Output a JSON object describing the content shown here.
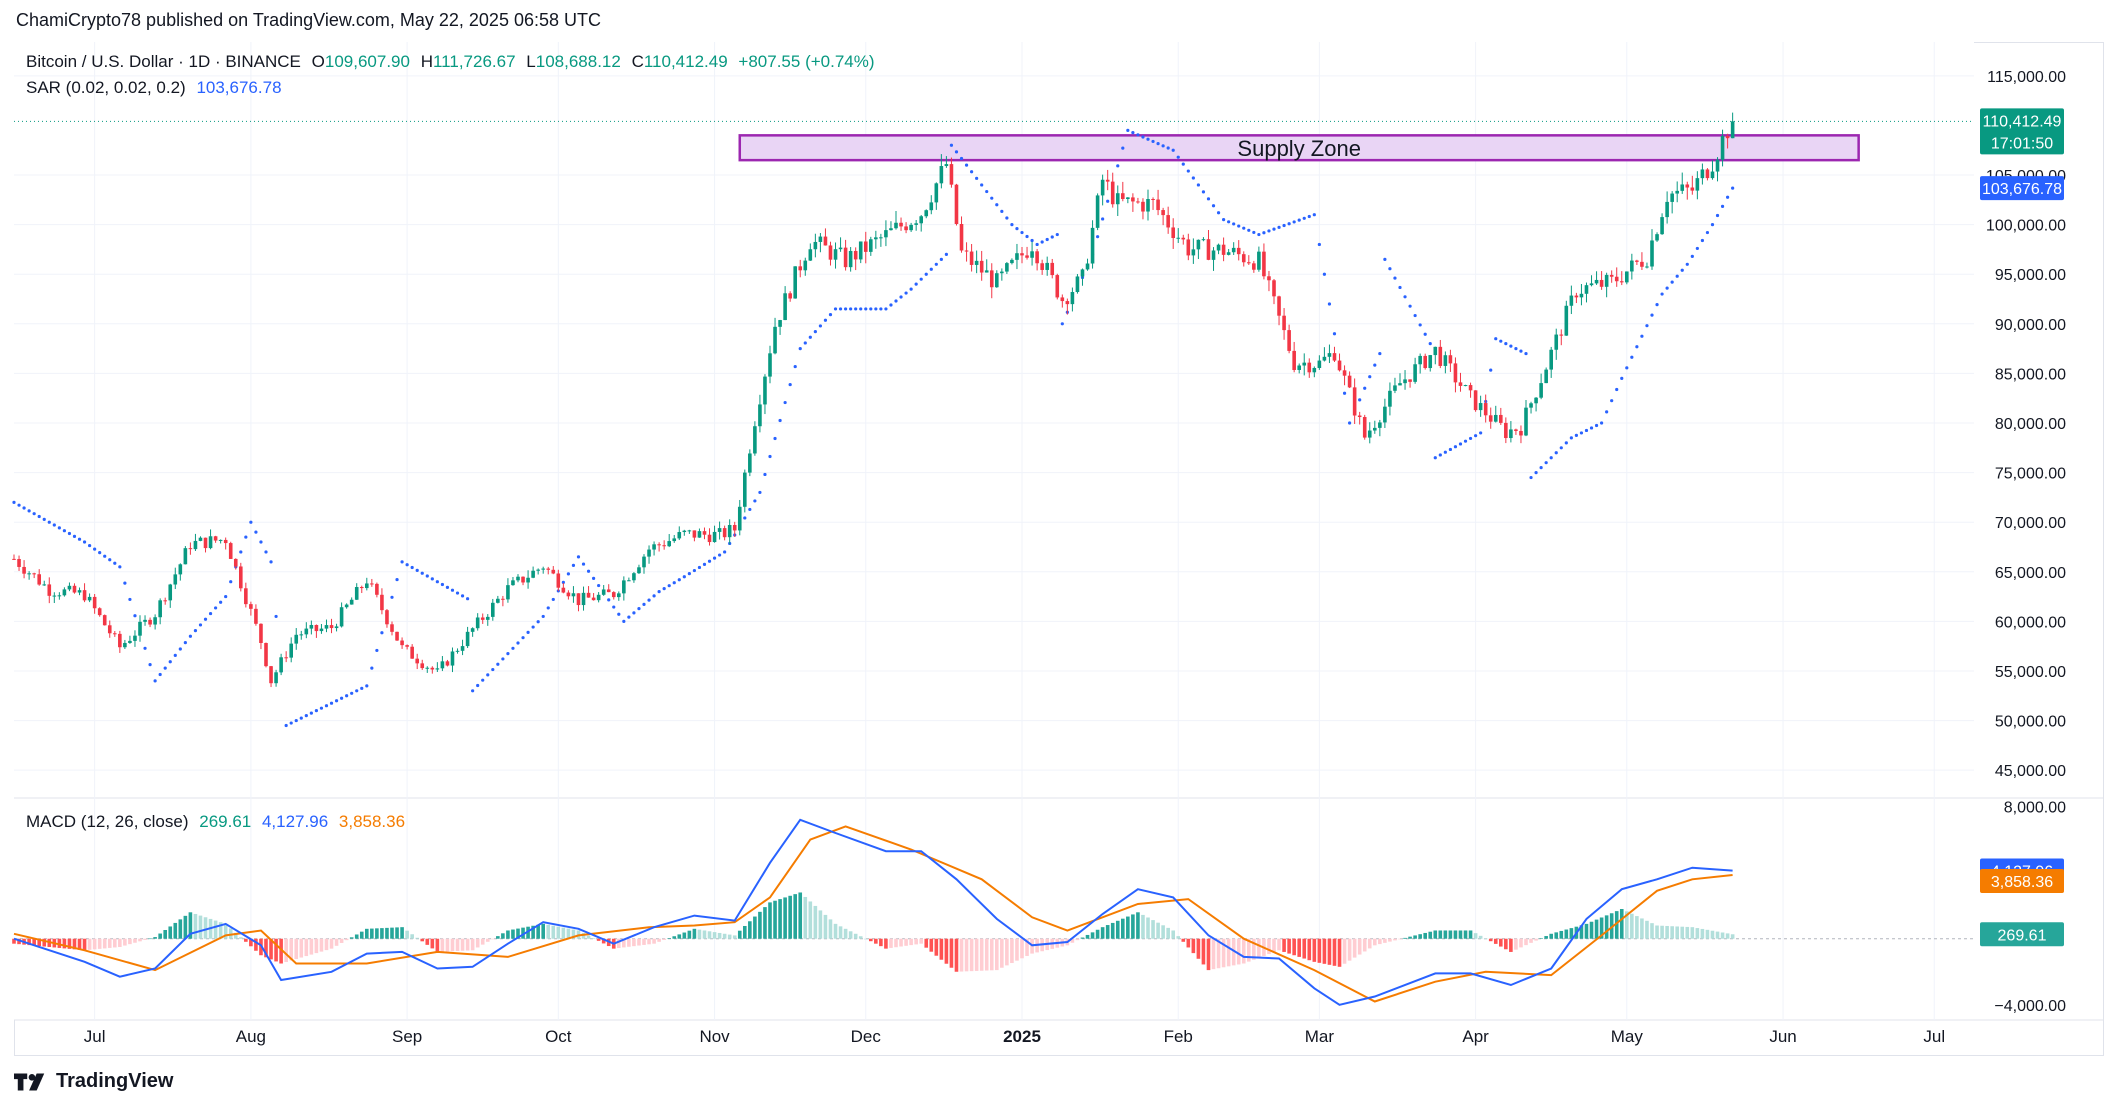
{
  "header": {
    "publisher_text": "ChamiCrypto78 published on TradingView.com, May 22, 2025 06:58 UTC"
  },
  "legend": {
    "symbol": "Bitcoin / U.S. Dollar · 1D · BINANCE",
    "o_label": "O",
    "o": "109,607.90",
    "h_label": "H",
    "h": "111,726.67",
    "l_label": "L",
    "l": "108,688.12",
    "c_label": "C",
    "c": "110,412.49",
    "change": "+807.55 (+0.74%)",
    "sar_label": "SAR (0.02, 0.02, 0.2)",
    "sar_value": "103,676.78",
    "macd_label": "MACD (12, 26, close)",
    "macd_hist": "269.61",
    "macd_line": "4,127.96",
    "macd_signal": "3,858.36"
  },
  "footer": {
    "brand": "TradingView"
  },
  "colors": {
    "up": "#089981",
    "down": "#f23645",
    "sar": "#2962ff",
    "macd": "#2962ff",
    "signal": "#f57c00",
    "zone_fill": "#e9d5f5",
    "zone_stroke": "#9c27b0",
    "price_badge": "#089981",
    "sar_badge": "#2962ff"
  },
  "chart_data": [
    {
      "type": "candlestick",
      "title": "Bitcoin / U.S. Dollar · 1D · BINANCE",
      "x_ticks": [
        "Jul",
        "Aug",
        "Sep",
        "Oct",
        "Nov",
        "Dec",
        "2025",
        "Feb",
        "Mar",
        "Apr",
        "May",
        "Jun",
        "Jul"
      ],
      "y_ticks": [
        "115,000.00",
        "105,000.00",
        "100,000.00",
        "95,000.00",
        "90,000.00",
        "85,000.00",
        "80,000.00",
        "75,000.00",
        "70,000.00",
        "65,000.00",
        "60,000.00",
        "55,000.00",
        "50,000.00",
        "45,000.00"
      ],
      "ylim": [
        43000,
        117000
      ],
      "grid": true,
      "annotation": {
        "label": "Supply Zone",
        "from_price": 106500,
        "to_price": 109000,
        "start": "Nov 06",
        "end": "Jun 15"
      },
      "last_price": {
        "value": "110,412.49",
        "countdown": "17:01:50"
      },
      "sar_last": {
        "value": "103,676.78"
      },
      "close_series": [
        [
          "Jun 15",
          66300
        ],
        [
          "Jun 22",
          63200
        ],
        [
          "Jun 29",
          62700
        ],
        [
          "Jul 06",
          57400
        ],
        [
          "Jul 13",
          60800
        ],
        [
          "Jul 20",
          67800
        ],
        [
          "Jul 27",
          68300
        ],
        [
          "Aug 03",
          58000
        ],
        [
          "Aug 05",
          54000
        ],
        [
          "Aug 10",
          58700
        ],
        [
          "Aug 17",
          59400
        ],
        [
          "Aug 24",
          64200
        ],
        [
          "Aug 31",
          57300
        ],
        [
          "Sep 07",
          54800
        ],
        [
          "Sep 14",
          59200
        ],
        [
          "Sep 21",
          63300
        ],
        [
          "Sep 28",
          65600
        ],
        [
          "Oct 05",
          62100
        ],
        [
          "Oct 12",
          62800
        ],
        [
          "Oct 19",
          67300
        ],
        [
          "Oct 26",
          68800
        ],
        [
          "Nov 02",
          68700
        ],
        [
          "Nov 05",
          69300
        ],
        [
          "Nov 09",
          80400
        ],
        [
          "Nov 13",
          89900
        ],
        [
          "Nov 20",
          98400
        ],
        [
          "Nov 27",
          96400
        ],
        [
          "Dec 05",
          98900
        ],
        [
          "Dec 12",
          101200
        ],
        [
          "Dec 17",
          106100
        ],
        [
          "Dec 20",
          97100
        ],
        [
          "Dec 27",
          94100
        ],
        [
          "Jan 03",
          98100
        ],
        [
          "Jan 09",
          92500
        ],
        [
          "Jan 13",
          94500
        ],
        [
          "Jan 17",
          104500
        ],
        [
          "Jan 20",
          102200
        ],
        [
          "Jan 27",
          102100
        ],
        [
          "Feb 03",
          97600
        ],
        [
          "Feb 10",
          97400
        ],
        [
          "Feb 17",
          96300
        ],
        [
          "Feb 24",
          86100
        ],
        [
          "Mar 01",
          86000
        ],
        [
          "Mar 04",
          87200
        ],
        [
          "Mar 10",
          78600
        ],
        [
          "Mar 17",
          84000
        ],
        [
          "Mar 24",
          87300
        ],
        [
          "Mar 31",
          82500
        ],
        [
          "Apr 07",
          79100
        ],
        [
          "Apr 10",
          79600
        ],
        [
          "Apr 14",
          84500
        ],
        [
          "Apr 21",
          93400
        ],
        [
          "Apr 28",
          94200
        ],
        [
          "May 05",
          96800
        ],
        [
          "May 09",
          103000
        ],
        [
          "May 14",
          103500
        ],
        [
          "May 18",
          106400
        ],
        [
          "May 21",
          109600
        ],
        [
          "May 22",
          110412.49
        ]
      ],
      "sar_series": [
        [
          "Jun 15",
          72000
        ],
        [
          "Jun 29",
          68000
        ],
        [
          "Jul 06",
          65500
        ],
        [
          "Jul 13",
          54000
        ],
        [
          "Jul 20",
          58500
        ],
        [
          "Jul 27",
          62500
        ],
        [
          "Aug 01",
          70000
        ],
        [
          "Aug 05",
          66000
        ],
        [
          "Aug 08",
          49500
        ],
        [
          "Aug 24",
          53500
        ],
        [
          "Aug 31",
          66000
        ],
        [
          "Sep 14",
          62000
        ],
        [
          "Sep 14",
          53000
        ],
        [
          "Sep 28",
          60500
        ],
        [
          "Oct 05",
          66500
        ],
        [
          "Oct 14",
          60000
        ],
        [
          "Oct 21",
          63000
        ],
        [
          "Oct 26",
          64500
        ],
        [
          "Nov 03",
          67000
        ],
        [
          "Nov 10",
          73000
        ],
        [
          "Nov 18",
          87500
        ],
        [
          "Nov 25",
          91500
        ],
        [
          "Dec 05",
          91500
        ],
        [
          "Dec 10",
          93500
        ],
        [
          "Dec 17",
          97000
        ],
        [
          "Dec 18",
          108000
        ],
        [
          "Dec 30",
          100000
        ],
        [
          "Jan 04",
          98000
        ],
        [
          "Jan 08",
          99000
        ],
        [
          "Jan 09",
          90000
        ],
        [
          "Jan 15",
          97000
        ],
        [
          "Jan 22",
          109500
        ],
        [
          "Jan 31",
          107500
        ],
        [
          "Feb 10",
          100500
        ],
        [
          "Feb 17",
          99000
        ],
        [
          "Feb 28",
          101000
        ],
        [
          "Mar 07",
          80000
        ],
        [
          "Mar 13",
          87000
        ],
        [
          "Mar 14",
          96500
        ],
        [
          "Mar 23",
          88000
        ],
        [
          "Mar 24",
          76500
        ],
        [
          "Apr 02",
          79000
        ],
        [
          "Apr 05",
          88500
        ],
        [
          "Apr 11",
          87000
        ],
        [
          "Apr 12",
          74500
        ],
        [
          "Apr 20",
          78500
        ],
        [
          "Apr 26",
          80000
        ],
        [
          "Apr 30",
          84500
        ],
        [
          "May 08",
          93000
        ],
        [
          "May 13",
          96000
        ],
        [
          "May 18",
          100000
        ],
        [
          "May 22",
          103676.78
        ]
      ]
    },
    {
      "type": "macd",
      "title": "MACD (12, 26, close)",
      "y_ticks": [
        "8,000.00",
        "−4,000.00"
      ],
      "ylim": [
        -4800,
        8400
      ],
      "last_values": {
        "histogram": "269.61",
        "macd": "4,127.96",
        "signal": "3,858.36"
      },
      "macd_series": [
        [
          "Jun 15",
          0
        ],
        [
          "Jun 29",
          -1400
        ],
        [
          "Jul 06",
          -2300
        ],
        [
          "Jul 13",
          -1800
        ],
        [
          "Jul 20",
          300
        ],
        [
          "Jul 27",
          900
        ],
        [
          "Aug 03",
          -400
        ],
        [
          "Aug 07",
          -2500
        ],
        [
          "Aug 17",
          -2000
        ],
        [
          "Aug 24",
          -900
        ],
        [
          "Aug 31",
          -800
        ],
        [
          "Sep 07",
          -1800
        ],
        [
          "Sep 14",
          -1700
        ],
        [
          "Sep 21",
          -300
        ],
        [
          "Sep 28",
          1000
        ],
        [
          "Oct 05",
          600
        ],
        [
          "Oct 12",
          -300
        ],
        [
          "Oct 20",
          700
        ],
        [
          "Oct 28",
          1400
        ],
        [
          "Nov 05",
          1100
        ],
        [
          "Nov 12",
          4600
        ],
        [
          "Nov 18",
          7200
        ],
        [
          "Nov 25",
          6400
        ],
        [
          "Dec 05",
          5300
        ],
        [
          "Dec 12",
          5300
        ],
        [
          "Dec 19",
          3600
        ],
        [
          "Dec 27",
          1200
        ],
        [
          "Jan 03",
          -400
        ],
        [
          "Jan 10",
          -200
        ],
        [
          "Jan 17",
          1500
        ],
        [
          "Jan 24",
          3000
        ],
        [
          "Jan 31",
          2500
        ],
        [
          "Feb 07",
          200
        ],
        [
          "Feb 14",
          -1100
        ],
        [
          "Feb 21",
          -1200
        ],
        [
          "Feb 28",
          -3000
        ],
        [
          "Mar 05",
          -4000
        ],
        [
          "Mar 12",
          -3500
        ],
        [
          "Mar 24",
          -2100
        ],
        [
          "Mar 31",
          -2100
        ],
        [
          "Apr 08",
          -2800
        ],
        [
          "Apr 16",
          -1800
        ],
        [
          "Apr 23",
          1200
        ],
        [
          "Apr 30",
          3000
        ],
        [
          "May 07",
          3600
        ],
        [
          "May 14",
          4300
        ],
        [
          "May 22",
          4127.96
        ]
      ],
      "signal_series": [
        [
          "Jun 15",
          300
        ],
        [
          "Jun 29",
          -700
        ],
        [
          "Jul 13",
          -1900
        ],
        [
          "Jul 27",
          200
        ],
        [
          "Aug 03",
          500
        ],
        [
          "Aug 10",
          -1500
        ],
        [
          "Aug 24",
          -1500
        ],
        [
          "Sep 07",
          -800
        ],
        [
          "Sep 21",
          -1100
        ],
        [
          "Oct 05",
          200
        ],
        [
          "Oct 19",
          700
        ],
        [
          "Oct 28",
          800
        ],
        [
          "Nov 05",
          1000
        ],
        [
          "Nov 12",
          2500
        ],
        [
          "Nov 20",
          6000
        ],
        [
          "Nov 27",
          6800
        ],
        [
          "Dec 10",
          5400
        ],
        [
          "Dec 24",
          3600
        ],
        [
          "Jan 03",
          1300
        ],
        [
          "Jan 10",
          500
        ],
        [
          "Jan 24",
          2100
        ],
        [
          "Feb 03",
          2400
        ],
        [
          "Feb 14",
          0
        ],
        [
          "Feb 28",
          -1900
        ],
        [
          "Mar 12",
          -3800
        ],
        [
          "Mar 24",
          -2600
        ],
        [
          "Apr 03",
          -2000
        ],
        [
          "Apr 16",
          -2200
        ],
        [
          "Apr 26",
          200
        ],
        [
          "May 07",
          2900
        ],
        [
          "May 14",
          3600
        ],
        [
          "May 22",
          3858.36
        ]
      ],
      "histogram_series": [
        [
          "Jun 15",
          -300
        ],
        [
          "Jun 29",
          -700
        ],
        [
          "Jul 06",
          -500
        ],
        [
          "Jul 13",
          100
        ],
        [
          "Jul 20",
          1600
        ],
        [
          "Jul 27",
          900
        ],
        [
          "Aug 03",
          -1000
        ],
        [
          "Aug 07",
          -1500
        ],
        [
          "Aug 17",
          -600
        ],
        [
          "Aug 24",
          600
        ],
        [
          "Aug 31",
          700
        ],
        [
          "Sep 07",
          -800
        ],
        [
          "Sep 14",
          -700
        ],
        [
          "Sep 21",
          500
        ],
        [
          "Sep 28",
          900
        ],
        [
          "Oct 05",
          500
        ],
        [
          "Oct 12",
          -600
        ],
        [
          "Oct 20",
          -300
        ],
        [
          "Oct 28",
          600
        ],
        [
          "Nov 05",
          200
        ],
        [
          "Nov 12",
          2200
        ],
        [
          "Nov 18",
          2800
        ],
        [
          "Nov 25",
          900
        ],
        [
          "Dec 05",
          -600
        ],
        [
          "Dec 12",
          -300
        ],
        [
          "Dec 19",
          -2000
        ],
        [
          "Dec 27",
          -1900
        ],
        [
          "Jan 03",
          -900
        ],
        [
          "Jan 10",
          -400
        ],
        [
          "Jan 17",
          700
        ],
        [
          "Jan 24",
          1600
        ],
        [
          "Jan 31",
          500
        ],
        [
          "Feb 07",
          -1900
        ],
        [
          "Feb 14",
          -1500
        ],
        [
          "Feb 21",
          -700
        ],
        [
          "Feb 28",
          -1400
        ],
        [
          "Mar 05",
          -1700
        ],
        [
          "Mar 12",
          -400
        ],
        [
          "Mar 24",
          500
        ],
        [
          "Mar 31",
          500
        ],
        [
          "Apr 08",
          -800
        ],
        [
          "Apr 16",
          300
        ],
        [
          "Apr 23",
          900
        ],
        [
          "Apr 30",
          1800
        ],
        [
          "May 07",
          800
        ],
        [
          "May 14",
          700
        ],
        [
          "May 22",
          269.61
        ]
      ]
    }
  ]
}
